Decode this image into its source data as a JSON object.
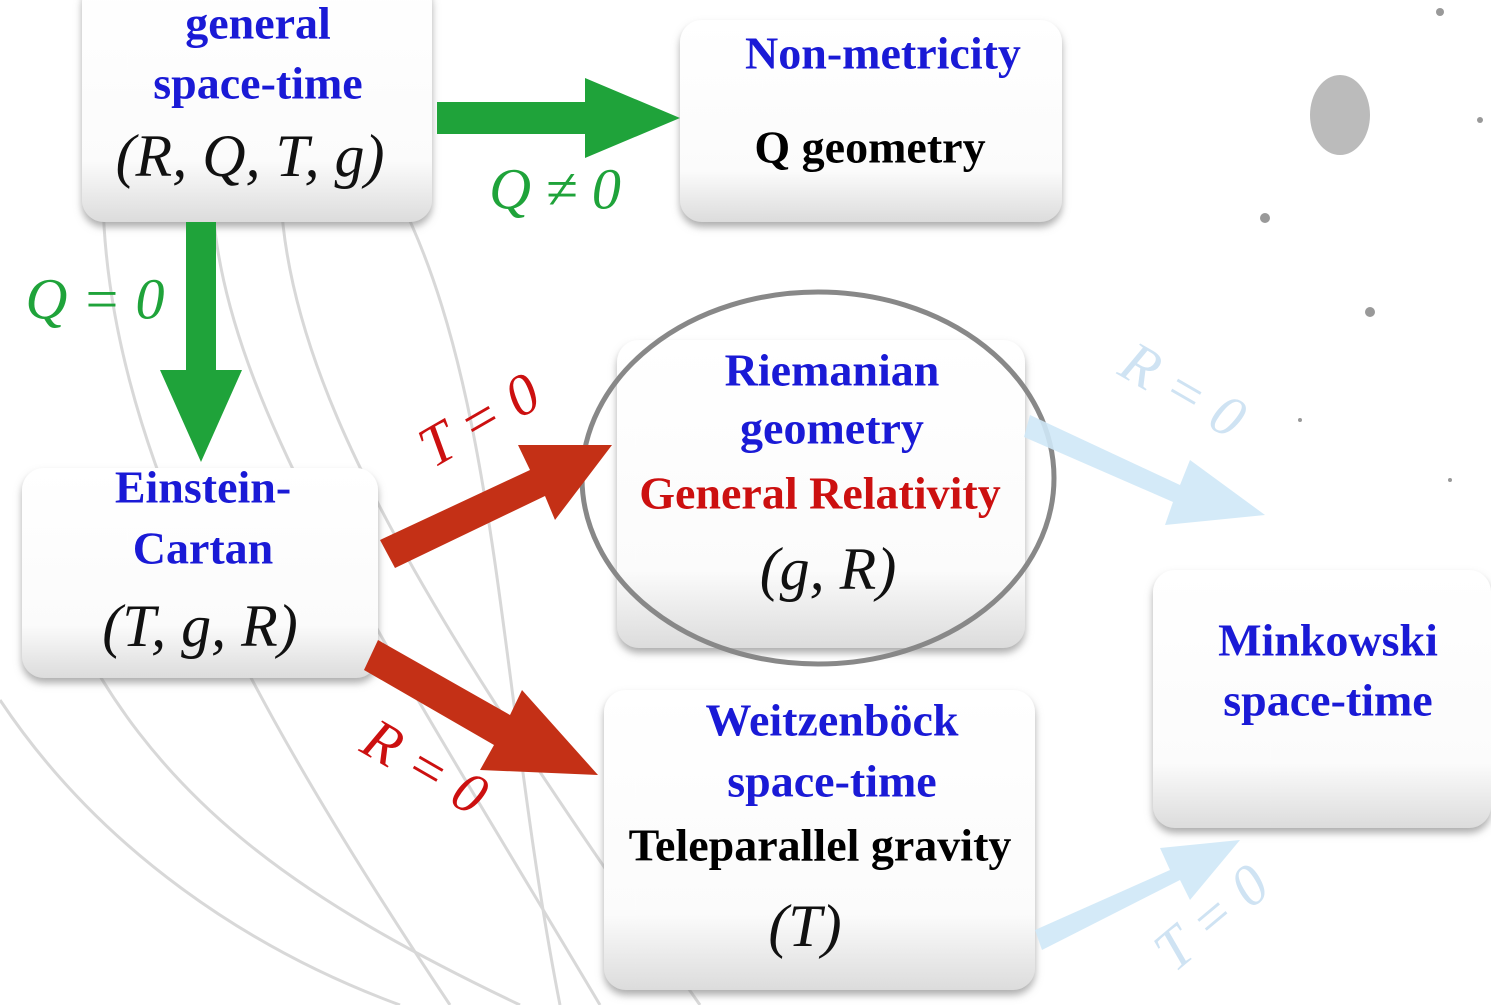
{
  "nodes": [
    {
      "lines": [
        "general",
        "space-time",
        "(R, Q, T, g)"
      ]
    },
    {
      "lines": [
        "Non-metricity",
        "Q geometry"
      ]
    },
    {
      "lines": [
        "Einstein-",
        "Cartan",
        "(T, g, R)"
      ]
    },
    {
      "lines": [
        "Riemanian",
        "geometry",
        "General Relativity",
        "(g, R)"
      ]
    },
    {
      "lines": [
        "Weitzenböck",
        "space-time",
        "Teleparallel gravity",
        "(T)"
      ]
    },
    {
      "lines": [
        "Minkowski",
        "space-time"
      ]
    }
  ],
  "edges": [
    {
      "label": "Q ≠ 0"
    },
    {
      "label": "Q = 0"
    },
    {
      "label": "T = 0"
    },
    {
      "label": "R = 0"
    },
    {
      "label": "R = 0"
    },
    {
      "label": "T = 0"
    }
  ]
}
